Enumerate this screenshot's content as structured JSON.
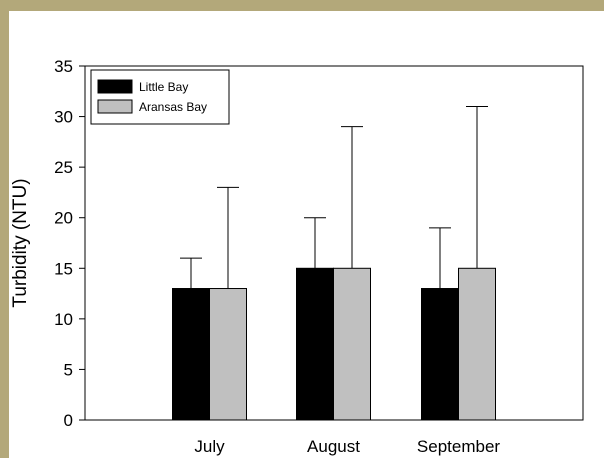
{
  "chart_data": {
    "type": "bar",
    "title": "",
    "xlabel": "",
    "ylabel": "Turbidity (NTU)",
    "ylim": [
      0,
      35
    ],
    "yticks": [
      0,
      5,
      10,
      15,
      20,
      25,
      30,
      35
    ],
    "grid": false,
    "legend_position": "top-left",
    "categories": [
      "July",
      "August",
      "September"
    ],
    "series": [
      {
        "name": "Little Bay",
        "color": "#000000",
        "values": [
          13,
          15,
          13
        ],
        "error_upper": [
          16,
          20,
          19
        ]
      },
      {
        "name": "Aransas Bay",
        "color": "#c0c0c0",
        "values": [
          13,
          15,
          15
        ],
        "error_upper": [
          23,
          29,
          31
        ]
      }
    ]
  }
}
